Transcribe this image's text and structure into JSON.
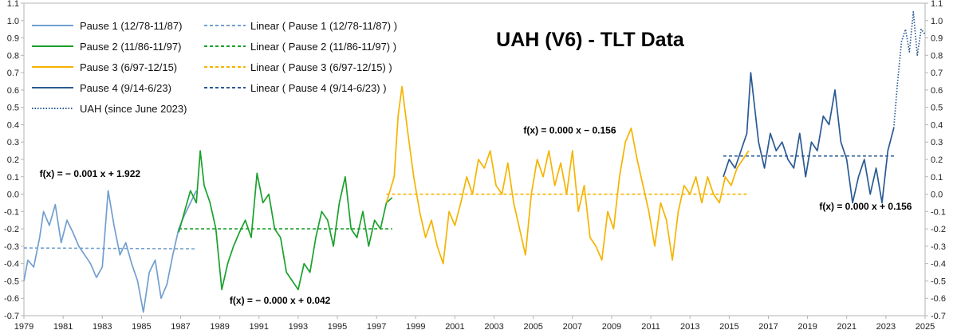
{
  "chart_data": {
    "type": "line",
    "title": "UAH (V6) - TLT Data",
    "xlabel": "",
    "ylabel": "",
    "xlim": [
      1979,
      2025
    ],
    "ylim": [
      -0.7,
      1.1
    ],
    "x_ticks": [
      "1979",
      "1981",
      "1983",
      "1985",
      "1987",
      "1989",
      "1991",
      "1993",
      "1995",
      "1997",
      "1999",
      "2001",
      "2003",
      "2005",
      "2007",
      "2009",
      "2011",
      "2013",
      "2015",
      "2017",
      "2019",
      "2021",
      "2023",
      "2025"
    ],
    "y_ticks": [
      "-0.7",
      "-0.6",
      "-0.5",
      "-0.4",
      "-0.3",
      "-0.2",
      "-0.1",
      "0.0",
      "0.1",
      "0.2",
      "0.3",
      "0.4",
      "0.5",
      "0.6",
      "0.7",
      "0.8",
      "0.9",
      "1.0",
      "1.1"
    ],
    "legend_position": "top-left",
    "series": [
      {
        "name": "Pause 1 (12/78-11/87)",
        "style": "solid",
        "color": "#729fcf",
        "x": [
          1979.0,
          1979.2,
          1979.5,
          1979.8,
          1980.0,
          1980.3,
          1980.6,
          1980.9,
          1981.2,
          1981.5,
          1981.8,
          1982.1,
          1982.4,
          1982.7,
          1983.0,
          1983.3,
          1983.6,
          1983.9,
          1984.2,
          1984.5,
          1984.8,
          1985.1,
          1985.4,
          1985.7,
          1986.0,
          1986.3,
          1986.6,
          1986.9,
          1987.2,
          1987.5,
          1987.8
        ],
        "values": [
          -0.5,
          -0.38,
          -0.42,
          -0.25,
          -0.1,
          -0.18,
          -0.06,
          -0.28,
          -0.15,
          -0.22,
          -0.3,
          -0.35,
          -0.4,
          -0.48,
          -0.42,
          0.02,
          -0.18,
          -0.35,
          -0.28,
          -0.4,
          -0.5,
          -0.68,
          -0.45,
          -0.38,
          -0.6,
          -0.52,
          -0.35,
          -0.2,
          -0.12,
          -0.05,
          0.02
        ]
      },
      {
        "name": "Pause 2 (11/86-11/97)",
        "style": "solid",
        "color": "#1aa12c",
        "x": [
          1986.9,
          1987.2,
          1987.5,
          1987.8,
          1988.0,
          1988.2,
          1988.5,
          1988.8,
          1989.1,
          1989.4,
          1989.7,
          1990.0,
          1990.3,
          1990.6,
          1990.9,
          1991.2,
          1991.5,
          1991.8,
          1992.1,
          1992.4,
          1992.7,
          1993.0,
          1993.3,
          1993.6,
          1993.9,
          1994.2,
          1994.5,
          1994.8,
          1995.1,
          1995.4,
          1995.7,
          1996.0,
          1996.3,
          1996.6,
          1996.9,
          1997.2,
          1997.5,
          1997.8
        ],
        "values": [
          -0.22,
          -0.1,
          0.02,
          -0.05,
          0.25,
          0.05,
          -0.05,
          -0.2,
          -0.55,
          -0.4,
          -0.3,
          -0.22,
          -0.15,
          -0.25,
          0.12,
          -0.05,
          0.0,
          -0.2,
          -0.25,
          -0.45,
          -0.5,
          -0.55,
          -0.4,
          -0.45,
          -0.25,
          -0.1,
          -0.15,
          -0.3,
          -0.05,
          0.1,
          -0.2,
          -0.25,
          -0.1,
          -0.3,
          -0.15,
          -0.2,
          -0.05,
          -0.02
        ]
      },
      {
        "name": "Pause 3 (6/97-12/15)",
        "style": "solid",
        "color": "#f5b400",
        "x": [
          1997.5,
          1997.9,
          1998.1,
          1998.3,
          1998.6,
          1998.9,
          1999.2,
          1999.5,
          1999.8,
          2000.1,
          2000.4,
          2000.7,
          2001.0,
          2001.3,
          2001.6,
          2001.9,
          2002.2,
          2002.5,
          2002.8,
          2003.1,
          2003.4,
          2003.7,
          2004.0,
          2004.3,
          2004.6,
          2004.9,
          2005.2,
          2005.5,
          2005.8,
          2006.1,
          2006.4,
          2006.7,
          2007.0,
          2007.3,
          2007.6,
          2007.9,
          2008.2,
          2008.5,
          2008.8,
          2009.1,
          2009.4,
          2009.7,
          2010.0,
          2010.3,
          2010.6,
          2010.9,
          2011.2,
          2011.5,
          2011.8,
          2012.1,
          2012.4,
          2012.7,
          2013.0,
          2013.3,
          2013.6,
          2013.9,
          2014.2,
          2014.5,
          2014.8,
          2015.1,
          2015.4,
          2015.7,
          2016.0
        ],
        "values": [
          -0.05,
          0.1,
          0.45,
          0.62,
          0.35,
          0.1,
          -0.1,
          -0.25,
          -0.15,
          -0.3,
          -0.4,
          -0.1,
          -0.18,
          -0.05,
          0.1,
          0.0,
          0.2,
          0.15,
          0.25,
          0.05,
          0.0,
          0.18,
          -0.05,
          -0.2,
          -0.35,
          0.0,
          0.2,
          0.1,
          0.25,
          0.05,
          0.18,
          0.0,
          0.25,
          -0.1,
          0.05,
          -0.25,
          -0.3,
          -0.38,
          -0.1,
          -0.2,
          0.1,
          0.3,
          0.38,
          0.2,
          0.05,
          -0.1,
          -0.3,
          -0.05,
          -0.15,
          -0.38,
          -0.1,
          0.05,
          0.0,
          0.1,
          -0.05,
          0.1,
          0.0,
          -0.05,
          0.1,
          0.05,
          0.15,
          0.2,
          0.25
        ]
      },
      {
        "name": "Pause 4 (9/14-6/23)",
        "style": "solid",
        "color": "#2a5a93",
        "x": [
          2014.7,
          2015.0,
          2015.3,
          2015.6,
          2015.9,
          2016.1,
          2016.3,
          2016.5,
          2016.8,
          2017.1,
          2017.4,
          2017.7,
          2018.0,
          2018.3,
          2018.6,
          2018.9,
          2019.2,
          2019.5,
          2019.8,
          2020.1,
          2020.4,
          2020.7,
          2021.0,
          2021.3,
          2021.6,
          2021.9,
          2022.2,
          2022.5,
          2022.8,
          2023.1,
          2023.4
        ],
        "values": [
          0.1,
          0.2,
          0.15,
          0.25,
          0.35,
          0.7,
          0.5,
          0.3,
          0.15,
          0.35,
          0.25,
          0.3,
          0.2,
          0.15,
          0.35,
          0.1,
          0.3,
          0.25,
          0.45,
          0.4,
          0.6,
          0.3,
          0.2,
          -0.05,
          0.1,
          0.2,
          0.0,
          0.15,
          -0.05,
          0.25,
          0.38
        ]
      },
      {
        "name": "UAH (since June 2023)",
        "style": "dotted",
        "color": "#2a5a93",
        "x": [
          2023.4,
          2023.6,
          2023.8,
          2024.0,
          2024.2,
          2024.4,
          2024.6,
          2024.8,
          2025.0
        ],
        "values": [
          0.38,
          0.65,
          0.88,
          0.95,
          0.82,
          1.05,
          0.8,
          0.95,
          0.92
        ]
      }
    ],
    "trendlines": [
      {
        "name": "Linear ( Pause 1 (12/78-11/87) )",
        "color": "#729fcf",
        "x": [
          1979.0,
          1987.8
        ],
        "values": [
          -0.31,
          -0.315
        ]
      },
      {
        "name": "Linear ( Pause 2 (11/86-11/97) )",
        "color": "#1aa12c",
        "x": [
          1986.9,
          1997.8
        ],
        "values": [
          -0.2,
          -0.2
        ]
      },
      {
        "name": "Linear ( Pause 3 (6/97-12/15) )",
        "color": "#f5b400",
        "x": [
          1997.5,
          2016.0
        ],
        "values": [
          0.0,
          0.0
        ]
      },
      {
        "name": "Linear ( Pause 4 (9/14-6/23) )",
        "color": "#2a5a93",
        "x": [
          2014.7,
          2023.5
        ],
        "values": [
          0.22,
          0.22
        ]
      }
    ],
    "annotations": [
      {
        "text": "f(x) = − 0.001 x + 1.922",
        "x": 1979.8,
        "y": 0.1
      },
      {
        "text": "f(x) = − 0.000 x + 0.042",
        "x": 1989.5,
        "y": -0.63
      },
      {
        "text": "f(x) = 0.000 x − 0.156",
        "x": 2004.5,
        "y": 0.35
      },
      {
        "text": "f(x) = 0.000 x + 0.156",
        "x": 2019.6,
        "y": -0.09
      }
    ]
  }
}
